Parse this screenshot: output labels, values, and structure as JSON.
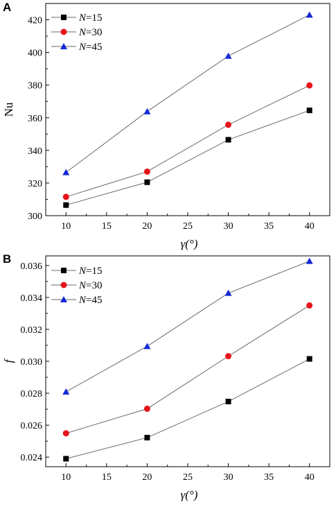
{
  "chart_data": [
    {
      "panel": "A",
      "type": "line",
      "xlabel": "γ(°)",
      "ylabel": "Nu",
      "xlim": [
        7.5,
        42.5
      ],
      "ylim": [
        300,
        430
      ],
      "x_ticks": [
        10,
        15,
        20,
        25,
        30,
        35,
        40
      ],
      "y_ticks": [
        300,
        320,
        340,
        360,
        380,
        400,
        420
      ],
      "y_tick_labels": [
        "300",
        "320",
        "340",
        "360",
        "380",
        "400",
        "420"
      ],
      "x": [
        10,
        20,
        30,
        40
      ],
      "legend_position": "top-left",
      "series": [
        {
          "prefix": "N",
          "suffix": "=15",
          "color": "#000000",
          "marker": "square",
          "values": [
            306.5,
            320.5,
            346.5,
            364.5
          ]
        },
        {
          "prefix": "N",
          "suffix": "=30",
          "color": "#e8141b",
          "marker": "circle",
          "values": [
            311.5,
            327.0,
            355.7,
            379.8
          ]
        },
        {
          "prefix": "N",
          "suffix": "=45",
          "color": "#1429d6",
          "marker": "triangle",
          "values": [
            326.5,
            363.8,
            397.8,
            423.0
          ]
        }
      ]
    },
    {
      "panel": "B",
      "type": "line",
      "xlabel": "γ(°)",
      "ylabel": "f",
      "xlim": [
        7.5,
        42.5
      ],
      "ylim": [
        0.0234,
        0.0366
      ],
      "x_ticks": [
        10,
        15,
        20,
        25,
        30,
        35,
        40
      ],
      "y_ticks": [
        0.024,
        0.026,
        0.028,
        0.03,
        0.032,
        0.034,
        0.036
      ],
      "y_tick_labels": [
        "0.024",
        "0.026",
        "0.028",
        "0.030",
        "0.032",
        "0.034",
        "0.036"
      ],
      "x": [
        10,
        20,
        30,
        40
      ],
      "legend_position": "top-left",
      "series": [
        {
          "prefix": "N",
          "suffix": "=15",
          "color": "#000000",
          "marker": "square",
          "values": [
            0.0239,
            0.02522,
            0.02748,
            0.03015
          ]
        },
        {
          "prefix": "N",
          "suffix": "=30",
          "color": "#e8141b",
          "marker": "circle",
          "values": [
            0.02549,
            0.02703,
            0.03032,
            0.0335
          ]
        },
        {
          "prefix": "N",
          "suffix": "=45",
          "color": "#1429d6",
          "marker": "triangle",
          "values": [
            0.02809,
            0.03094,
            0.03427,
            0.03627
          ]
        }
      ]
    }
  ]
}
